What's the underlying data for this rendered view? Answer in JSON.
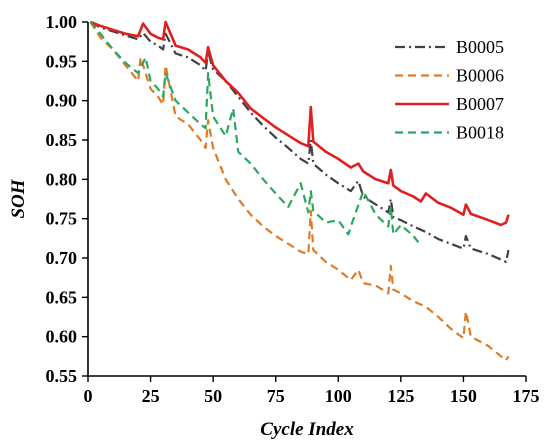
{
  "chart_data": {
    "type": "line",
    "title": "",
    "xlabel": "Cycle Index",
    "ylabel": "SOH",
    "xlim": [
      0,
      175
    ],
    "ylim": [
      0.55,
      1.0
    ],
    "xticks": [
      0,
      25,
      50,
      75,
      100,
      125,
      150,
      175
    ],
    "yticks": [
      0.55,
      0.6,
      0.65,
      0.7,
      0.75,
      0.8,
      0.85,
      0.9,
      0.95,
      1.0
    ],
    "xtick_labels": [
      "0",
      "25",
      "50",
      "75",
      "100",
      "125",
      "150",
      "175"
    ],
    "ytick_labels": [
      "0.55",
      "0.60",
      "0.65",
      "0.70",
      "0.75",
      "0.80",
      "0.85",
      "0.90",
      "0.95",
      "1.00"
    ],
    "grid": false,
    "legend_position": "top-right",
    "series": [
      {
        "name": "B0005",
        "color": "#404040",
        "dash": "dashdot",
        "x": [
          1,
          5,
          10,
          15,
          20,
          22,
          25,
          28,
          30,
          31,
          35,
          40,
          45,
          47,
          48,
          50,
          55,
          60,
          65,
          70,
          75,
          80,
          85,
          88,
          89,
          90,
          95,
          100,
          105,
          108,
          110,
          115,
          120,
          121,
          122,
          125,
          130,
          135,
          140,
          145,
          150,
          151,
          153,
          160,
          165,
          167,
          168
        ],
        "y": [
          1.0,
          0.993,
          0.988,
          0.983,
          0.978,
          0.986,
          0.975,
          0.97,
          0.965,
          0.985,
          0.96,
          0.955,
          0.945,
          0.938,
          0.962,
          0.94,
          0.925,
          0.905,
          0.885,
          0.868,
          0.853,
          0.84,
          0.826,
          0.82,
          0.85,
          0.82,
          0.806,
          0.795,
          0.785,
          0.798,
          0.778,
          0.768,
          0.758,
          0.775,
          0.752,
          0.748,
          0.74,
          0.733,
          0.724,
          0.718,
          0.712,
          0.728,
          0.712,
          0.705,
          0.698,
          0.695,
          0.71
        ]
      },
      {
        "name": "B0006",
        "color": "#e07b24",
        "dash": "dashed",
        "x": [
          1,
          5,
          10,
          15,
          20,
          21,
          25,
          28,
          30,
          31,
          35,
          40,
          45,
          47,
          48,
          50,
          55,
          60,
          65,
          70,
          75,
          80,
          85,
          88,
          89,
          90,
          95,
          100,
          105,
          108,
          110,
          115,
          120,
          121,
          122,
          125,
          130,
          135,
          140,
          145,
          150,
          151,
          153,
          160,
          165,
          167,
          168
        ],
        "y": [
          1.0,
          0.98,
          0.965,
          0.945,
          0.925,
          0.955,
          0.915,
          0.905,
          0.895,
          0.945,
          0.88,
          0.87,
          0.85,
          0.84,
          0.875,
          0.84,
          0.8,
          0.775,
          0.755,
          0.74,
          0.728,
          0.718,
          0.708,
          0.705,
          0.76,
          0.71,
          0.695,
          0.685,
          0.672,
          0.685,
          0.668,
          0.665,
          0.655,
          0.69,
          0.66,
          0.655,
          0.645,
          0.638,
          0.625,
          0.61,
          0.598,
          0.632,
          0.6,
          0.588,
          0.575,
          0.57,
          0.575
        ]
      },
      {
        "name": "B0007",
        "color": "#e02020",
        "dash": "solid",
        "x": [
          1,
          5,
          10,
          15,
          20,
          22,
          25,
          28,
          30,
          31,
          35,
          40,
          45,
          47,
          48,
          50,
          55,
          60,
          65,
          70,
          75,
          80,
          85,
          88,
          89,
          90,
          95,
          100,
          105,
          108,
          110,
          115,
          120,
          121,
          122,
          125,
          130,
          133,
          135,
          140,
          145,
          150,
          151,
          153,
          160,
          165,
          167,
          168
        ],
        "y": [
          1.0,
          0.995,
          0.99,
          0.985,
          0.982,
          0.998,
          0.985,
          0.98,
          0.978,
          1.0,
          0.97,
          0.965,
          0.955,
          0.948,
          0.968,
          0.945,
          0.925,
          0.91,
          0.89,
          0.878,
          0.866,
          0.856,
          0.846,
          0.842,
          0.892,
          0.848,
          0.835,
          0.826,
          0.815,
          0.82,
          0.81,
          0.8,
          0.795,
          0.812,
          0.792,
          0.785,
          0.778,
          0.772,
          0.782,
          0.77,
          0.764,
          0.755,
          0.768,
          0.756,
          0.748,
          0.742,
          0.745,
          0.755
        ]
      },
      {
        "name": "B0018",
        "color": "#2aa860",
        "dash": "dashed",
        "x": [
          1,
          5,
          10,
          15,
          20,
          23,
          25,
          28,
          30,
          31,
          35,
          40,
          45,
          47,
          48,
          50,
          55,
          58,
          60,
          65,
          70,
          75,
          80,
          85,
          88,
          89,
          90,
          95,
          100,
          104,
          105,
          110,
          115,
          120,
          121,
          122,
          125,
          130,
          132
        ],
        "y": [
          1.0,
          0.985,
          0.965,
          0.948,
          0.935,
          0.955,
          0.925,
          0.915,
          0.905,
          0.935,
          0.9,
          0.885,
          0.87,
          0.865,
          0.935,
          0.88,
          0.855,
          0.89,
          0.835,
          0.82,
          0.8,
          0.782,
          0.765,
          0.795,
          0.758,
          0.785,
          0.76,
          0.745,
          0.748,
          0.73,
          0.74,
          0.785,
          0.755,
          0.74,
          0.765,
          0.73,
          0.742,
          0.728,
          0.72
        ]
      }
    ]
  }
}
